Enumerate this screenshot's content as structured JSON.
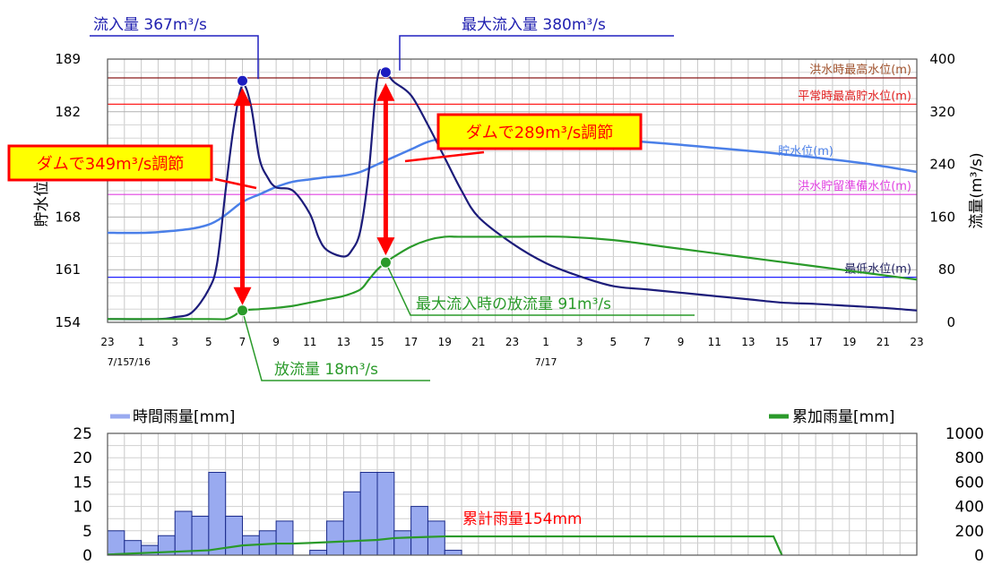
{
  "chart_data": [
    {
      "type": "line",
      "title": "",
      "ylabel_left": "貯水位(m)",
      "ylabel_right": "流量(m³/s)",
      "ylim_left": [
        154,
        189
      ],
      "ylim_right": [
        0,
        400
      ],
      "left_ticks": [
        154,
        161,
        168,
        175,
        182,
        189
      ],
      "left_tick_labels": [
        "154",
        "161",
        "168",
        "",
        "182",
        "189"
      ],
      "right_ticks": [
        0,
        80,
        160,
        240,
        320,
        400
      ],
      "x_hours": [
        0,
        48
      ],
      "x_tick_labels": [
        "23",
        "1",
        "3",
        "5",
        "7",
        "9",
        "11",
        "13",
        "15",
        "17",
        "19",
        "21",
        "23",
        "1",
        "3",
        "5",
        "7",
        "9",
        "11",
        "13",
        "15",
        "17",
        "19",
        "21",
        "23"
      ],
      "date_labels": [
        {
          "hour": 0,
          "text": "7/15"
        },
        {
          "hour": 2,
          "text": "7/16"
        },
        {
          "hour": 26,
          "text": "7/17"
        }
      ],
      "reference_lines": [
        {
          "name": "洪水時最高水位(m)",
          "level": 186.5,
          "color": "#8b1a1a",
          "label_color": "#a0522d"
        },
        {
          "name": "平常時最高貯水位(m)",
          "level": 183.0,
          "color": "#ff2020",
          "label_color": "#e02020"
        },
        {
          "name": "洪水貯留準備水位(m)",
          "level": 171.0,
          "color": "#e040e0",
          "label_color": "#e040e0"
        },
        {
          "name": "最低水位(m)",
          "level": 160.0,
          "color": "#2020ff",
          "label_color": "#202060"
        }
      ],
      "series": [
        {
          "name": "貯水位(m)",
          "axis": "left",
          "color": "#4a7fe8",
          "x": [
            0,
            3,
            6,
            8,
            9,
            10,
            11,
            12,
            13,
            14,
            15,
            16,
            17,
            18,
            19,
            20,
            21,
            24,
            27,
            30,
            33,
            36,
            39,
            42,
            45,
            48
          ],
          "values": [
            165.9,
            166.0,
            167.0,
            170.0,
            171.0,
            172.0,
            172.7,
            173.0,
            173.3,
            173.5,
            174.0,
            175.0,
            176.0,
            177.0,
            178.0,
            178.5,
            178.7,
            178.8,
            178.7,
            178.3,
            177.8,
            177.2,
            176.6,
            175.9,
            175.1,
            174.0
          ]
        },
        {
          "name": "流入量",
          "axis": "right",
          "color": "#1c1c7a",
          "x": [
            0,
            3,
            4,
            5,
            6,
            6.5,
            7,
            7.5,
            8,
            8.5,
            9,
            9.5,
            10,
            11,
            12,
            12.5,
            13,
            14,
            14.5,
            15,
            15.5,
            16,
            16.5,
            17,
            18,
            19,
            20,
            21,
            22,
            24,
            26,
            28,
            30,
            32,
            34,
            36,
            38,
            40,
            42,
            44,
            46,
            48
          ],
          "values": [
            5,
            5,
            8,
            15,
            50,
            90,
            200,
            300,
            360,
            330,
            250,
            220,
            205,
            200,
            165,
            130,
            110,
            100,
            110,
            140,
            230,
            370,
            378,
            365,
            345,
            300,
            250,
            200,
            160,
            120,
            90,
            70,
            55,
            50,
            45,
            40,
            35,
            30,
            28,
            25,
            22,
            18
          ]
        },
        {
          "name": "放流量",
          "axis": "right",
          "color": "#2a9a2a",
          "x": [
            0,
            6,
            7,
            7.5,
            8,
            9,
            10,
            11,
            12,
            13,
            14,
            15,
            15.5,
            16,
            16.5,
            17,
            18,
            19,
            20,
            21,
            24,
            27,
            30,
            33,
            36,
            39,
            42,
            45,
            48
          ],
          "values": [
            5,
            5,
            5,
            10,
            18,
            20,
            22,
            25,
            30,
            35,
            40,
            50,
            65,
            80,
            91,
            100,
            115,
            125,
            130,
            130,
            130,
            130,
            125,
            115,
            105,
            95,
            85,
            75,
            65
          ]
        }
      ]
    },
    {
      "type": "bar",
      "title": "",
      "legend_left": "時間雨量[mm]",
      "legend_right": "累加雨量[mm]",
      "ylim_left": [
        0,
        25
      ],
      "ylim_right": [
        0,
        1000
      ],
      "left_ticks": [
        0,
        5,
        10,
        15,
        20,
        25
      ],
      "right_ticks": [
        0,
        200,
        400,
        600,
        800,
        1000
      ],
      "series": [
        {
          "name": "時間雨量[mm]",
          "axis": "left",
          "color": "#99aaf0",
          "values": [
            5,
            3,
            2,
            4,
            9,
            8,
            17,
            8,
            4,
            5,
            7,
            0,
            1,
            7,
            13,
            17,
            17,
            5,
            10,
            7,
            1,
            0,
            0,
            0,
            0,
            0,
            0,
            0,
            0,
            0,
            0,
            0,
            0,
            0,
            0,
            0,
            0,
            0,
            0,
            0,
            0,
            0,
            0,
            0,
            0,
            0,
            0,
            0
          ]
        },
        {
          "name": "累加雨量[mm]",
          "axis": "right",
          "color": "#2a9a2a",
          "x": [
            0,
            6,
            7,
            8,
            10,
            11,
            12,
            16,
            17,
            18,
            19,
            20,
            21,
            39,
            39.5,
            40
          ],
          "values": [
            5,
            40,
            60,
            80,
            95,
            95,
            100,
            125,
            140,
            145,
            150,
            154,
            154,
            154,
            154,
            0
          ]
        }
      ]
    }
  ],
  "annotations": {
    "inflow_peak1": "流入量 367m³/s",
    "inflow_peak2": "最大流入量 380m³/s",
    "regulation1": "ダムで349m³/s調節",
    "regulation2": "ダムで289m³/s調節",
    "outflow1": "放流量 18m³/s",
    "outflow2": "最大流入時の放流量 91m³/s",
    "storage_label": "貯水位(m)",
    "rain_total": "累計雨量154mm"
  }
}
